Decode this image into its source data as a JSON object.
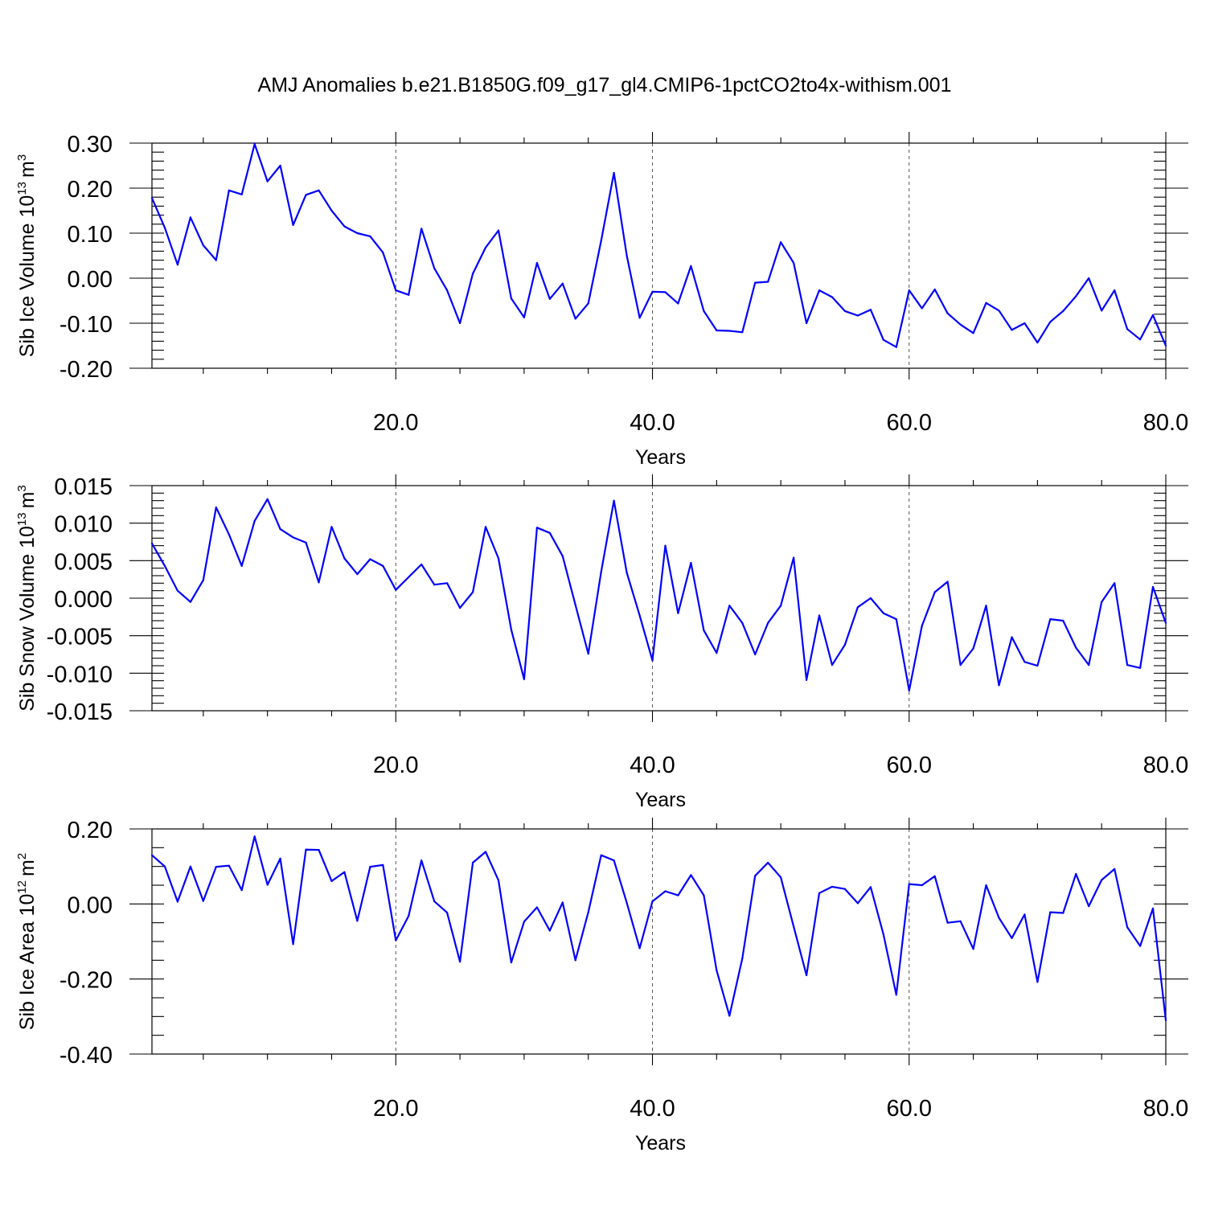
{
  "figure": {
    "title": "AMJ Anomalies b.e21.B1850G.f09_g17_gl4.CMIP6-1pctCO2to4x-withism.001"
  },
  "chart_data": [
    {
      "type": "line",
      "ylabel": "Sib Ice Volume 10",
      "ylabel_exp": "13",
      "ylabel_unit": "m",
      "ylabel_unit_exp": "3",
      "xlabel": "Years",
      "xlim": [
        1,
        80
      ],
      "ylim": [
        -0.2,
        0.3
      ],
      "x_ticks": [
        "20.0",
        "40.0",
        "60.0",
        "80.0"
      ],
      "x_tick_values": [
        20,
        40,
        60,
        80
      ],
      "y_ticks": [
        "0.30",
        "0.20",
        "0.10",
        "0.00",
        "-0.10",
        "-0.20"
      ],
      "y_tick_values": [
        0.3,
        0.2,
        0.1,
        0.0,
        -0.1,
        -0.2
      ],
      "grid": "dashed vertical at major x ticks",
      "series": [
        {
          "color": "#0000ff",
          "x_start": 1,
          "values": [
            0.178,
            0.112,
            0.03,
            0.135,
            0.073,
            0.04,
            0.195,
            0.186,
            0.298,
            0.215,
            0.25,
            0.118,
            0.185,
            0.195,
            0.15,
            0.115,
            0.1,
            0.093,
            0.057,
            -0.027,
            -0.037,
            0.11,
            0.022,
            -0.027,
            -0.1,
            0.01,
            0.068,
            0.106,
            -0.045,
            -0.087,
            0.034,
            -0.046,
            -0.012,
            -0.09,
            -0.056,
            0.083,
            0.234,
            0.05,
            -0.088,
            -0.03,
            -0.031,
            -0.056,
            0.027,
            -0.073,
            -0.116,
            -0.117,
            -0.12,
            -0.01,
            -0.008,
            0.08,
            0.034,
            -0.1,
            -0.027,
            -0.042,
            -0.073,
            -0.083,
            -0.07,
            -0.137,
            -0.153,
            -0.027,
            -0.067,
            -0.025,
            -0.078,
            -0.103,
            -0.122,
            -0.055,
            -0.072,
            -0.115,
            -0.1,
            -0.143,
            -0.097,
            -0.073,
            -0.04,
            0.0,
            -0.072,
            -0.027,
            -0.113,
            -0.136,
            -0.082,
            -0.15
          ]
        }
      ]
    },
    {
      "type": "line",
      "ylabel": "Sib Snow Volume 10",
      "ylabel_exp": "13",
      "ylabel_unit": "m",
      "ylabel_unit_exp": "3",
      "xlabel": "Years",
      "xlim": [
        1,
        80
      ],
      "ylim": [
        -0.015,
        0.015
      ],
      "x_ticks": [
        "20.0",
        "40.0",
        "60.0",
        "80.0"
      ],
      "x_tick_values": [
        20,
        40,
        60,
        80
      ],
      "y_ticks": [
        "0.015",
        "0.010",
        "0.005",
        "0.000",
        "-0.005",
        "-0.010",
        "-0.015"
      ],
      "y_tick_values": [
        0.015,
        0.01,
        0.005,
        0.0,
        -0.005,
        -0.01,
        -0.015
      ],
      "grid": "dashed vertical at major x ticks",
      "series": [
        {
          "color": "#0000ff",
          "x_start": 1,
          "values": [
            0.0073,
            0.0043,
            0.001,
            -0.0005,
            0.0024,
            0.0121,
            0.0085,
            0.0043,
            0.0103,
            0.0132,
            0.0092,
            0.0081,
            0.0074,
            0.0021,
            0.0095,
            0.0053,
            0.0032,
            0.0052,
            0.0043,
            0.0011,
            0.0028,
            0.0045,
            0.0018,
            0.002,
            -0.0013,
            0.0008,
            0.0095,
            0.0053,
            -0.0042,
            -0.0108,
            0.0094,
            0.0087,
            0.0056,
            -0.0009,
            -0.0074,
            0.0035,
            0.013,
            0.0034,
            -0.0023,
            -0.0083,
            0.007,
            -0.002,
            0.0047,
            -0.0043,
            -0.0073,
            -0.001,
            -0.0033,
            -0.0075,
            -0.0033,
            -0.001,
            0.0054,
            -0.0109,
            -0.0023,
            -0.0089,
            -0.0062,
            -0.0012,
            0.0,
            -0.002,
            -0.0028,
            -0.0123,
            -0.0037,
            0.0008,
            0.0022,
            -0.0089,
            -0.0067,
            -0.001,
            -0.0116,
            -0.0052,
            -0.0085,
            -0.009,
            -0.0028,
            -0.003,
            -0.0066,
            -0.0089,
            -0.0005,
            0.002,
            -0.0089,
            -0.0093,
            0.0015,
            -0.0033
          ]
        }
      ]
    },
    {
      "type": "line",
      "ylabel": "Sib Ice Area 10",
      "ylabel_exp": "12",
      "ylabel_unit": "m",
      "ylabel_unit_exp": "2",
      "xlabel": "Years",
      "xlim": [
        1,
        80
      ],
      "ylim": [
        -0.4,
        0.2
      ],
      "x_ticks": [
        "20.0",
        "40.0",
        "60.0",
        "80.0"
      ],
      "x_tick_values": [
        20,
        40,
        60,
        80
      ],
      "y_ticks": [
        "0.20",
        "0.00",
        "-0.20",
        "-0.40"
      ],
      "y_tick_values": [
        0.2,
        0.0,
        -0.2,
        -0.4
      ],
      "grid": "dashed vertical at major x ticks",
      "series": [
        {
          "color": "#0000ff",
          "x_start": 1,
          "values": [
            0.13,
            0.1,
            0.006,
            0.1,
            0.008,
            0.099,
            0.102,
            0.037,
            0.18,
            0.051,
            0.121,
            -0.107,
            0.145,
            0.144,
            0.061,
            0.085,
            -0.045,
            0.099,
            0.104,
            -0.097,
            -0.032,
            0.116,
            0.007,
            -0.023,
            -0.154,
            0.11,
            0.139,
            0.063,
            -0.156,
            -0.047,
            -0.009,
            -0.071,
            0.004,
            -0.15,
            -0.022,
            0.13,
            0.116,
            0.003,
            -0.118,
            0.007,
            0.034,
            0.023,
            0.077,
            0.023,
            -0.177,
            -0.298,
            -0.145,
            0.075,
            0.11,
            0.071,
            -0.06,
            -0.19,
            0.029,
            0.046,
            0.04,
            0.002,
            0.045,
            -0.081,
            -0.242,
            0.053,
            0.05,
            0.074,
            -0.05,
            -0.046,
            -0.12,
            0.05,
            -0.037,
            -0.091,
            -0.028,
            -0.208,
            -0.022,
            -0.024,
            0.08,
            -0.006,
            0.064,
            0.093,
            -0.062,
            -0.112,
            -0.012,
            -0.31
          ]
        }
      ]
    }
  ]
}
